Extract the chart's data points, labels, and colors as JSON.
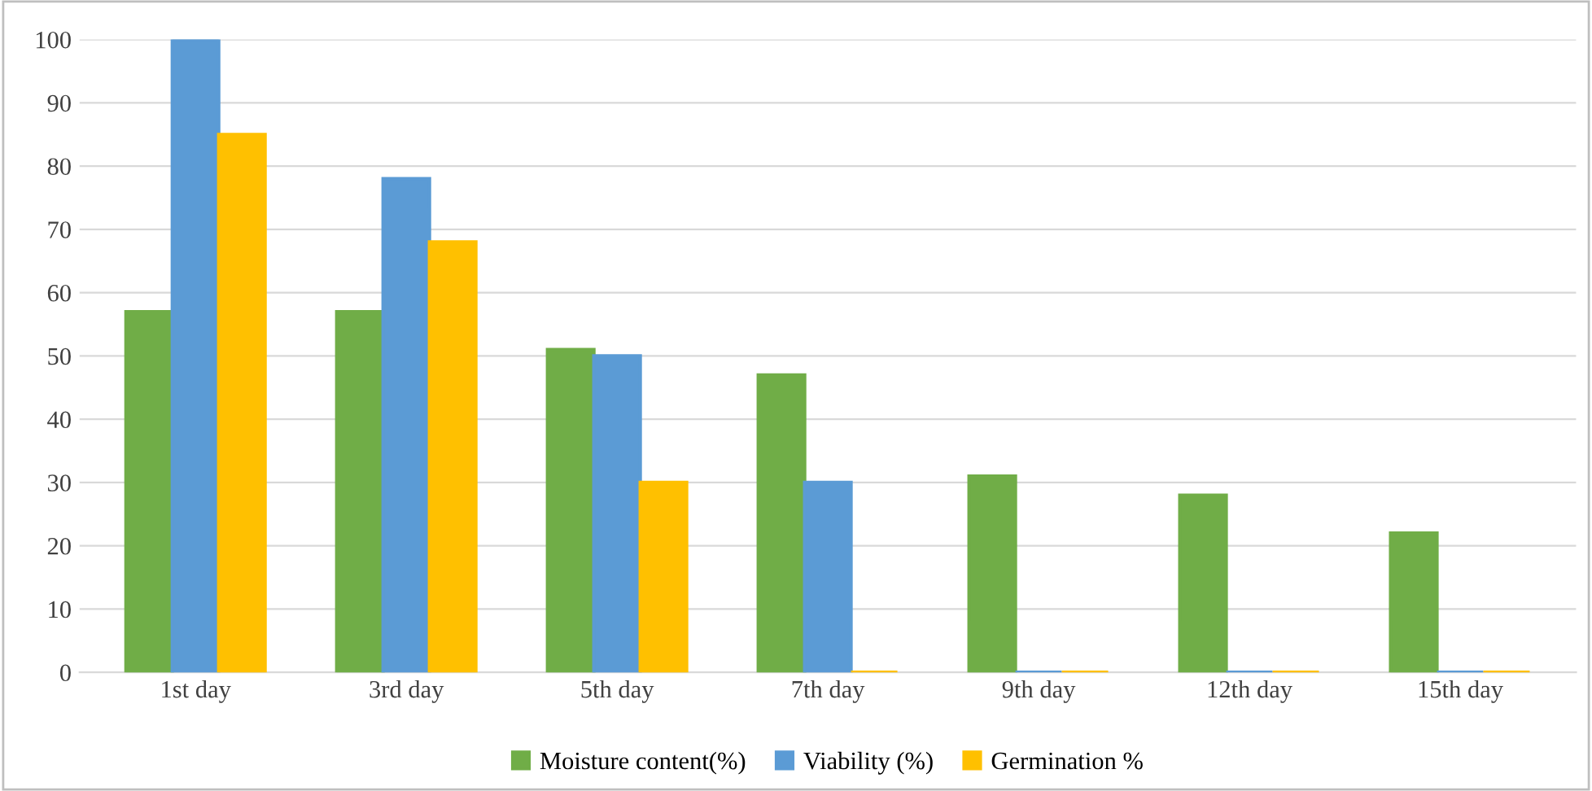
{
  "chart_data": {
    "type": "bar",
    "categories": [
      "1st day",
      "3rd day",
      "5th day",
      "7th day",
      "9th day",
      "12th day",
      "15th day"
    ],
    "series": [
      {
        "name": "Moisture content(%)",
        "color": "#70ad47",
        "values": [
          57,
          57,
          51,
          47,
          31,
          28,
          22
        ]
      },
      {
        "name": "Viability (%)",
        "color": "#5b9bd5",
        "values": [
          100,
          78,
          50,
          30,
          0,
          0,
          0
        ]
      },
      {
        "name": "Germination %",
        "color": "#ffc000",
        "values": [
          85,
          68,
          30,
          0,
          0,
          0,
          0
        ]
      }
    ],
    "ylim": [
      0,
      100
    ],
    "yticks": [
      0,
      10,
      20,
      30,
      40,
      50,
      60,
      70,
      80,
      90,
      100
    ],
    "grid": "y",
    "legend": "bottom"
  }
}
